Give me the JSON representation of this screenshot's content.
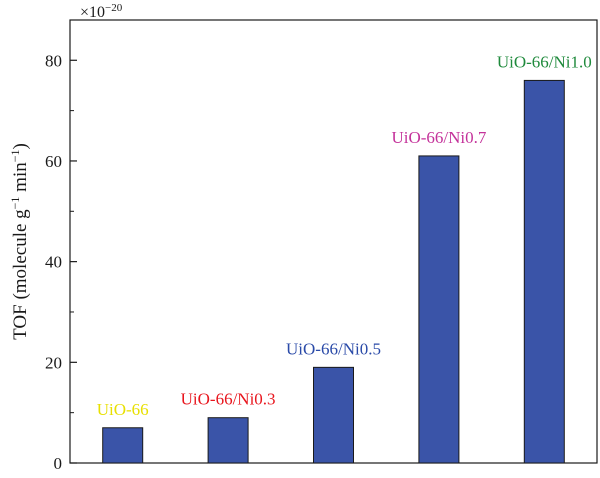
{
  "chart_data": {
    "type": "bar",
    "categories": [
      "UiO-66",
      "UiO-66/Ni0.3",
      "UiO-66/Ni0.5",
      "UiO-66/Ni0.7",
      "UiO-66/Ni1.0"
    ],
    "values": [
      7,
      9,
      19,
      61,
      76
    ],
    "label_colors": [
      "#e8e000",
      "#e8141c",
      "#2a4aa8",
      "#c4329a",
      "#1f8a3c"
    ],
    "bar_color": "#3a54a8",
    "ylabel_text": "TOF (molecule g",
    "ylabel_sup1": "−1",
    "ylabel_mid": " min",
    "ylabel_sup2": "−1",
    "ylabel_end": ")",
    "y_multiplier": "×10",
    "y_multiplier_exp": "−20",
    "ylim": [
      0,
      88
    ],
    "yticks": [
      0,
      20,
      40,
      60,
      80
    ],
    "grid": false,
    "legend": "none"
  }
}
